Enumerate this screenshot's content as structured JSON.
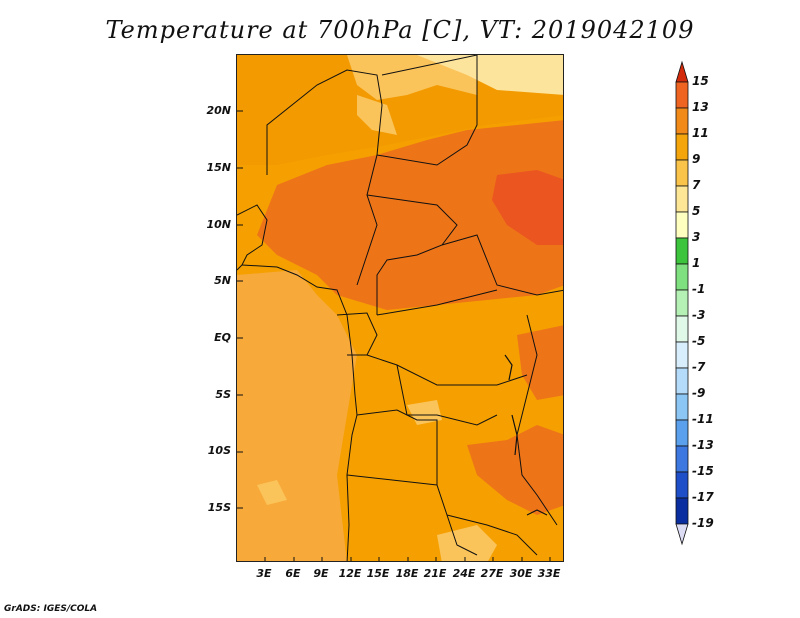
{
  "title": "Temperature at 700hPa [C], VT: 2019042109",
  "credit": "GrADS: IGES/COLA",
  "map": {
    "variable": "Temperature at 700hPa",
    "unit": "C",
    "lat_labels": [
      "20N",
      "15N",
      "10N",
      "5N",
      "EQ",
      "5S",
      "10S",
      "15S"
    ],
    "lon_labels": [
      "3E",
      "6E",
      "9E",
      "12E",
      "15E",
      "18E",
      "21E",
      "24E",
      "27E",
      "30E",
      "33E"
    ],
    "colors": {
      "c_7_9": "#f5a500",
      "c_9_11": "#f59a0a",
      "c_11_13": "#ef7a1a",
      "c_13_15": "#ea5520",
      "c_5_7": "#fbc45a",
      "c_3_5": "#fde49c",
      "ocean_light": "#f7a93a"
    }
  },
  "colorbar": {
    "labels": [
      "15",
      "13",
      "11",
      "9",
      "7",
      "5",
      "3",
      "1",
      "-1",
      "-3",
      "-5",
      "-7",
      "-9",
      "-11",
      "-13",
      "-15",
      "-17",
      "-19"
    ],
    "colors": [
      "#ea3a14",
      "#ee6420",
      "#f28a1a",
      "#f5a50c",
      "#fac44a",
      "#fde696",
      "#ffffc0",
      "#3cc43c",
      "#7fe07f",
      "#b5f0b5",
      "#e0f8e8",
      "#d8eefc",
      "#b4dcfa",
      "#8cc6f5",
      "#5aa0ec",
      "#3c78e0",
      "#1e4ec8",
      "#0a2ea0",
      "#0a1470"
    ],
    "top_arrow_color": "#d22a0a",
    "bottom_arrow_color": "#dcdcf5"
  }
}
